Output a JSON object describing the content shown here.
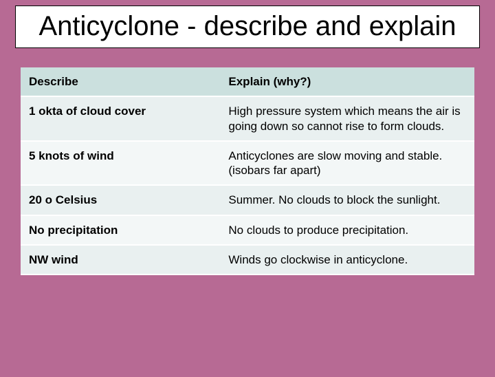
{
  "title": "Anticyclone - describe and explain",
  "background_color": "#b76a94",
  "title_box": {
    "bg": "#ffffff",
    "border": "#000000",
    "font_size": 40
  },
  "table": {
    "header_bg": "#cbe0de",
    "row_odd_bg": "#e9f0f0",
    "row_even_bg": "#f3f7f7",
    "border_color": "#ffffff",
    "font_size": 17,
    "col_widths": [
      "44%",
      "56%"
    ],
    "columns": [
      "Describe",
      "Explain (why?)"
    ],
    "rows": [
      [
        "1 okta of cloud cover",
        "High pressure system which means the air is going down so cannot rise to form clouds."
      ],
      [
        "5 knots of wind",
        "Anticyclones are slow moving and stable. (isobars far apart)"
      ],
      [
        "20 o Celsius",
        "Summer. No clouds to block the sunlight."
      ],
      [
        "No precipitation",
        "No clouds to produce precipitation."
      ],
      [
        "NW wind",
        "Winds go clockwise in anticyclone."
      ]
    ]
  }
}
